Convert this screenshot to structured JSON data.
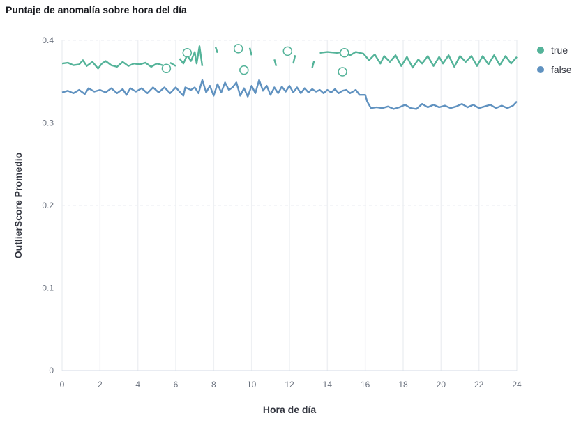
{
  "title": "Puntaje de anomalía sobre hora del día",
  "chart_data": {
    "type": "line",
    "xlabel": "Hora de día",
    "ylabel": "OutlierScore Promedio",
    "xlim": [
      0,
      24
    ],
    "ylim": [
      0,
      0.4
    ],
    "x_ticks": [
      "0",
      "2",
      "4",
      "6",
      "8",
      "10",
      "12",
      "14",
      "16",
      "18",
      "20",
      "22",
      "24"
    ],
    "y_ticks": [
      "0",
      "0.1",
      "0.2",
      "0.3",
      "0.4"
    ],
    "grid": true,
    "legend": "top-right",
    "series": [
      {
        "name": "true",
        "color": "#54b399",
        "segments": [
          [
            [
              0,
              0.372
            ],
            [
              0.3,
              0.373
            ],
            [
              0.6,
              0.37
            ],
            [
              0.9,
              0.371
            ],
            [
              1.1,
              0.376
            ],
            [
              1.3,
              0.369
            ],
            [
              1.6,
              0.374
            ],
            [
              1.9,
              0.366
            ],
            [
              2.1,
              0.372
            ],
            [
              2.3,
              0.375
            ],
            [
              2.6,
              0.37
            ],
            [
              2.9,
              0.368
            ],
            [
              3.2,
              0.374
            ],
            [
              3.5,
              0.369
            ],
            [
              3.8,
              0.372
            ],
            [
              4.1,
              0.371
            ],
            [
              4.4,
              0.373
            ],
            [
              4.7,
              0.368
            ],
            [
              5.0,
              0.372
            ],
            [
              5.3,
              0.37
            ]
          ],
          [
            [
              5.7,
              0.373
            ],
            [
              6.0,
              0.369
            ]
          ],
          [
            [
              6.2,
              0.378
            ],
            [
              6.4,
              0.372
            ],
            [
              6.6,
              0.382
            ],
            [
              6.8,
              0.375
            ],
            [
              7.0,
              0.386
            ],
            [
              7.1,
              0.372
            ],
            [
              7.25,
              0.393
            ],
            [
              7.4,
              0.369
            ]
          ],
          [
            [
              8.1,
              0.392
            ],
            [
              8.2,
              0.385
            ]
          ],
          [
            [
              9.9,
              0.391
            ],
            [
              10.0,
              0.382
            ]
          ],
          [
            [
              11.2,
              0.377
            ],
            [
              11.3,
              0.369
            ]
          ],
          [
            [
              12.2,
              0.372
            ],
            [
              12.3,
              0.382
            ]
          ],
          [
            [
              13.2,
              0.367
            ],
            [
              13.3,
              0.375
            ]
          ],
          [
            [
              13.6,
              0.385
            ],
            [
              14.0,
              0.386
            ],
            [
              14.5,
              0.385
            ],
            [
              14.9,
              0.386
            ],
            [
              15.2,
              0.382
            ],
            [
              15.5,
              0.386
            ],
            [
              15.9,
              0.384
            ],
            [
              16.2,
              0.376
            ],
            [
              16.5,
              0.383
            ],
            [
              16.8,
              0.372
            ],
            [
              17.0,
              0.381
            ],
            [
              17.3,
              0.374
            ],
            [
              17.6,
              0.382
            ],
            [
              17.9,
              0.369
            ],
            [
              18.2,
              0.38
            ],
            [
              18.5,
              0.367
            ],
            [
              18.8,
              0.377
            ],
            [
              19.0,
              0.372
            ],
            [
              19.3,
              0.381
            ],
            [
              19.6,
              0.369
            ],
            [
              19.9,
              0.38
            ],
            [
              20.1,
              0.372
            ],
            [
              20.4,
              0.382
            ],
            [
              20.7,
              0.368
            ],
            [
              21.0,
              0.381
            ],
            [
              21.3,
              0.374
            ],
            [
              21.6,
              0.381
            ],
            [
              21.9,
              0.369
            ],
            [
              22.2,
              0.381
            ],
            [
              22.5,
              0.371
            ],
            [
              22.8,
              0.382
            ],
            [
              23.1,
              0.37
            ],
            [
              23.4,
              0.381
            ],
            [
              23.7,
              0.372
            ],
            [
              24.0,
              0.38
            ]
          ]
        ],
        "points": [
          [
            5.5,
            0.366
          ],
          [
            6.6,
            0.385
          ],
          [
            9.3,
            0.39
          ],
          [
            9.6,
            0.364
          ],
          [
            11.9,
            0.387
          ],
          [
            14.8,
            0.362
          ],
          [
            14.9,
            0.385
          ]
        ]
      },
      {
        "name": "false",
        "color": "#6092c0",
        "segments": [
          [
            [
              0,
              0.337
            ],
            [
              0.3,
              0.339
            ],
            [
              0.6,
              0.336
            ],
            [
              0.9,
              0.34
            ],
            [
              1.2,
              0.335
            ],
            [
              1.4,
              0.342
            ],
            [
              1.7,
              0.338
            ],
            [
              2.0,
              0.34
            ],
            [
              2.3,
              0.337
            ],
            [
              2.6,
              0.342
            ],
            [
              2.9,
              0.336
            ],
            [
              3.2,
              0.341
            ],
            [
              3.4,
              0.334
            ],
            [
              3.6,
              0.342
            ],
            [
              3.9,
              0.338
            ],
            [
              4.2,
              0.342
            ],
            [
              4.5,
              0.336
            ],
            [
              4.8,
              0.343
            ],
            [
              5.1,
              0.337
            ],
            [
              5.4,
              0.343
            ],
            [
              5.7,
              0.336
            ],
            [
              6.0,
              0.343
            ],
            [
              6.2,
              0.338
            ],
            [
              6.4,
              0.333
            ],
            [
              6.5,
              0.343
            ],
            [
              6.8,
              0.34
            ],
            [
              7.0,
              0.343
            ],
            [
              7.2,
              0.336
            ],
            [
              7.4,
              0.352
            ],
            [
              7.6,
              0.337
            ],
            [
              7.8,
              0.345
            ],
            [
              8.0,
              0.333
            ],
            [
              8.2,
              0.347
            ],
            [
              8.4,
              0.337
            ],
            [
              8.6,
              0.349
            ],
            [
              8.8,
              0.34
            ],
            [
              9.0,
              0.343
            ],
            [
              9.2,
              0.349
            ],
            [
              9.4,
              0.333
            ],
            [
              9.6,
              0.342
            ],
            [
              9.8,
              0.332
            ],
            [
              10.0,
              0.345
            ],
            [
              10.2,
              0.336
            ],
            [
              10.4,
              0.352
            ],
            [
              10.6,
              0.339
            ],
            [
              10.8,
              0.345
            ],
            [
              11.0,
              0.334
            ],
            [
              11.2,
              0.343
            ],
            [
              11.4,
              0.336
            ],
            [
              11.6,
              0.344
            ],
            [
              11.8,
              0.338
            ],
            [
              12.0,
              0.345
            ],
            [
              12.2,
              0.337
            ],
            [
              12.4,
              0.343
            ],
            [
              12.6,
              0.336
            ],
            [
              12.8,
              0.342
            ],
            [
              13.0,
              0.337
            ],
            [
              13.2,
              0.341
            ],
            [
              13.4,
              0.338
            ],
            [
              13.6,
              0.34
            ],
            [
              13.8,
              0.336
            ],
            [
              14.0,
              0.34
            ],
            [
              14.2,
              0.337
            ],
            [
              14.4,
              0.341
            ],
            [
              14.6,
              0.336
            ],
            [
              14.8,
              0.339
            ],
            [
              15.0,
              0.34
            ],
            [
              15.2,
              0.336
            ],
            [
              15.5,
              0.34
            ],
            [
              15.7,
              0.334
            ],
            [
              16.0,
              0.334
            ],
            [
              16.1,
              0.326
            ],
            [
              16.3,
              0.318
            ],
            [
              16.6,
              0.319
            ],
            [
              16.9,
              0.318
            ],
            [
              17.2,
              0.32
            ],
            [
              17.5,
              0.317
            ],
            [
              17.8,
              0.319
            ],
            [
              18.1,
              0.322
            ],
            [
              18.4,
              0.318
            ],
            [
              18.7,
              0.317
            ],
            [
              19.0,
              0.323
            ],
            [
              19.3,
              0.319
            ],
            [
              19.6,
              0.322
            ],
            [
              19.9,
              0.319
            ],
            [
              20.2,
              0.321
            ],
            [
              20.5,
              0.318
            ],
            [
              20.8,
              0.32
            ],
            [
              21.1,
              0.323
            ],
            [
              21.4,
              0.319
            ],
            [
              21.7,
              0.322
            ],
            [
              22.0,
              0.318
            ],
            [
              22.3,
              0.32
            ],
            [
              22.6,
              0.322
            ],
            [
              22.9,
              0.318
            ],
            [
              23.2,
              0.321
            ],
            [
              23.5,
              0.318
            ],
            [
              23.8,
              0.321
            ],
            [
              24.0,
              0.326
            ]
          ]
        ],
        "points": []
      }
    ]
  }
}
